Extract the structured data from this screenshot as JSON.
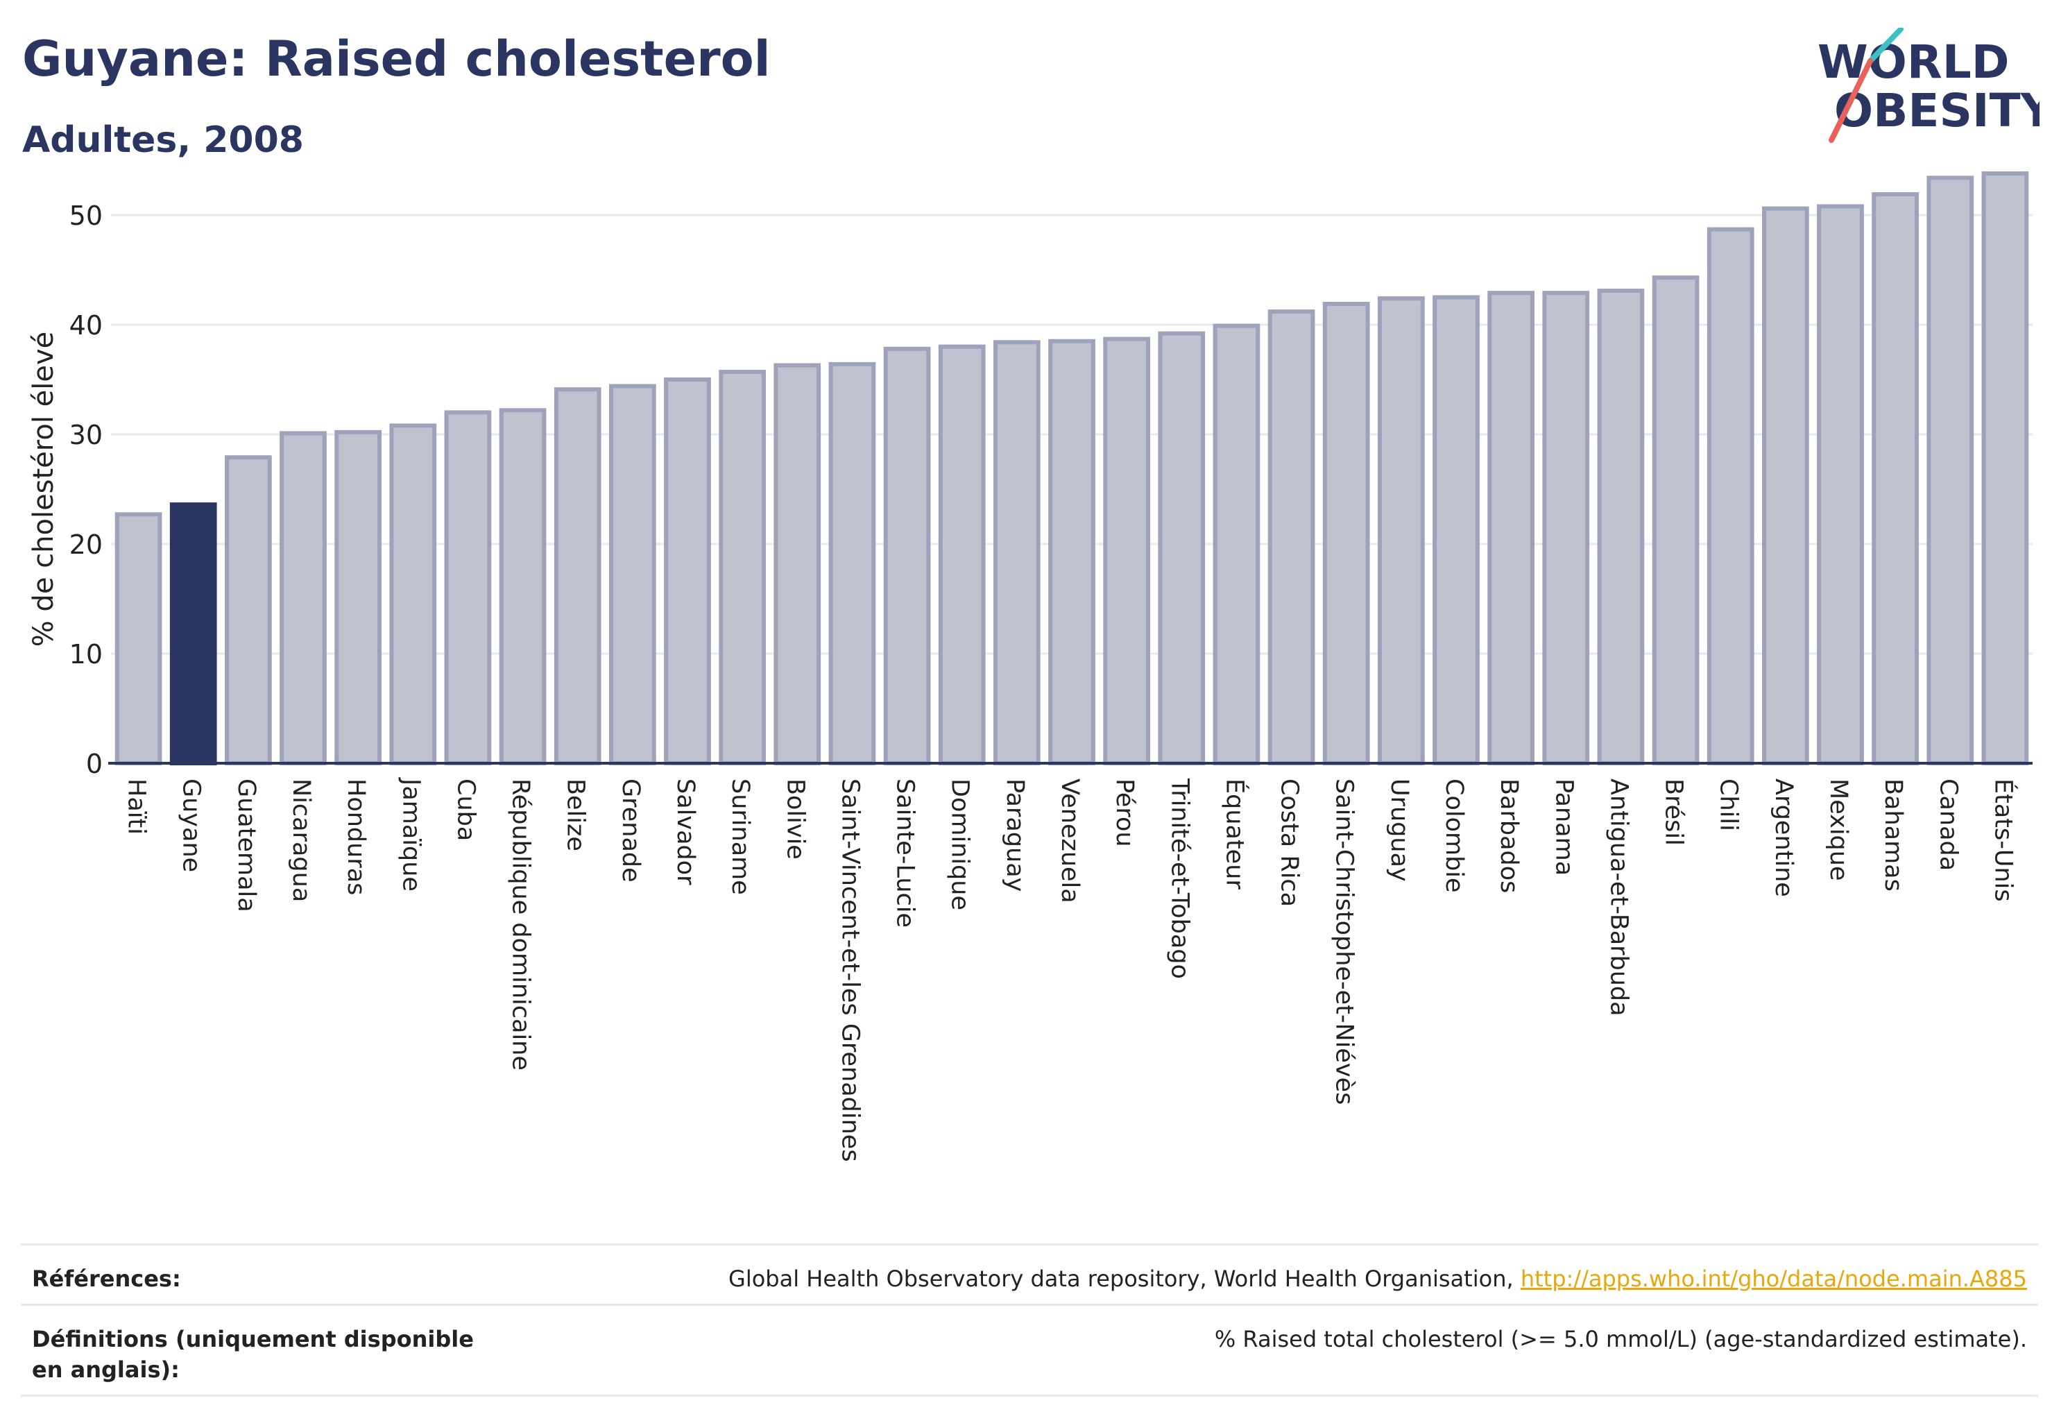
{
  "header": {
    "title": "Guyane: Raised cholesterol",
    "subtitle": "Adultes, 2008"
  },
  "logo": {
    "line1": "WORLD",
    "line2": "OBESITY",
    "colors": {
      "text": "#2b3561",
      "accent_red": "#e8615a",
      "accent_teal": "#3dbfc4"
    }
  },
  "chart_data": {
    "type": "bar",
    "ylabel": "% de cholestérol élevé",
    "xlabel": "",
    "ylim": [
      0,
      55
    ],
    "yticks": [
      0,
      10,
      20,
      30,
      40,
      50
    ],
    "grid": true,
    "highlight": "Guyane",
    "colors": {
      "bar": "#bfc2cf",
      "bar_stroke": "#9ea3bb",
      "highlight": "#2b3561",
      "axis": "#2b3561",
      "grid": "#e8e9ee"
    },
    "categories": [
      "Haïti",
      "Guyane",
      "Guatemala",
      "Nicaragua",
      "Honduras",
      "Jamaïque",
      "Cuba",
      "République dominicaine",
      "Belize",
      "Grenade",
      "Salvador",
      "Suriname",
      "Bolivie",
      "Saint-Vincent-et-les Grenadines",
      "Sainte-Lucie",
      "Dominique",
      "Paraguay",
      "Venezuela",
      "Pérou",
      "Trinité-et-Tobago",
      "Équateur",
      "Costa Rica",
      "Saint-Christophe-et-Niévès",
      "Uruguay",
      "Colombie",
      "Barbados",
      "Panama",
      "Antigua-et-Barbuda",
      "Brésil",
      "Chili",
      "Argentine",
      "Mexique",
      "Bahamas",
      "Canada",
      "États-Unis"
    ],
    "values": [
      22.7,
      23.6,
      27.9,
      30.1,
      30.2,
      30.8,
      32.0,
      32.2,
      34.1,
      34.4,
      35.0,
      35.7,
      36.3,
      36.4,
      37.8,
      38.0,
      38.4,
      38.5,
      38.7,
      39.2,
      39.9,
      41.2,
      41.9,
      42.4,
      42.5,
      42.9,
      42.9,
      43.1,
      44.3,
      48.7,
      50.6,
      50.8,
      51.9,
      53.4,
      53.8
    ]
  },
  "references": {
    "label": "Références:",
    "text": "Global Health Observatory data repository, World Health Organisation, ",
    "link": "http://apps.who.int/gho/data/node.main.A885"
  },
  "definitions": {
    "label": "Définitions (uniquement disponible en anglais):",
    "text": "% Raised total cholesterol (>= 5.0 mmol/L) (age-standardized estimate)."
  }
}
